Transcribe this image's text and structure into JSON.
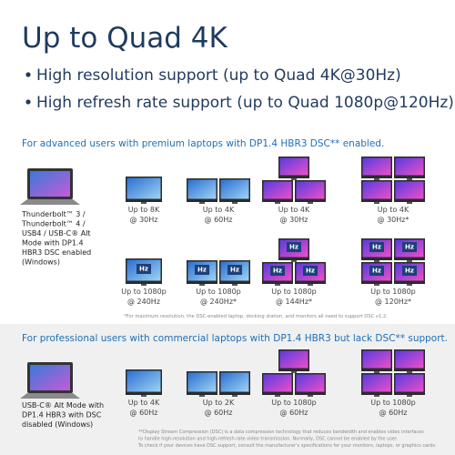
{
  "title": "Up to Quad 4K",
  "bullets": [
    "High resolution support (up to Quad 4K@30Hz)",
    "High refresh rate support (up to Quad 1080p@120Hz)"
  ],
  "sections": [
    {
      "heading": "For advanced users with premium laptops with DP1.4 HBR3 DSC** enabled.",
      "device": [
        "Thunderbolt™ 3 /",
        "Thunderbolt™ 4 /",
        "USB4 / USB-C® Alt",
        "Mode with DP1.4",
        "HBR3 DSC enabled",
        "(Windows)"
      ],
      "rows": [
        {
          "groups": [
            {
              "label": [
                "Up to 8K",
                "@ 30Hz"
              ]
            },
            {
              "label": [
                "Up to 4K",
                "@ 60Hz"
              ]
            },
            {
              "label": [
                "Up to 4K",
                "@ 30Hz"
              ]
            },
            {
              "label": [
                "Up to 4K",
                "@ 30Hz*"
              ]
            }
          ]
        },
        {
          "badge": "Hz",
          "groups": [
            {
              "label": [
                "Up to 1080p",
                "@ 240Hz"
              ]
            },
            {
              "label": [
                "Up to 1080p",
                "@ 240Hz*"
              ]
            },
            {
              "label": [
                "Up to 1080p",
                "@ 144Hz*"
              ]
            },
            {
              "label": [
                "Up to 1080p",
                "@ 120Hz*"
              ]
            }
          ]
        }
      ],
      "note": [
        "*For maximum resolution, the DSC-enabled laptop, docking station, and monitors all need to support DSC v1.2."
      ]
    },
    {
      "heading": "For professional users with commercial laptops with DP1.4 HBR3 but lack DSC** support.",
      "device": [
        "USB-C® Alt Mode with",
        "DP1.4 HBR3 with DSC",
        "disabled (Windows)"
      ],
      "rows": [
        {
          "groups": [
            {
              "label": [
                "Up to 4K",
                "@ 60Hz"
              ]
            },
            {
              "label": [
                "Up to 2K",
                "@ 60Hz"
              ]
            },
            {
              "label": [
                "Up to 1080p",
                "@ 60Hz"
              ]
            },
            {
              "label": [
                "Up to 1080p",
                "@ 60Hz"
              ]
            }
          ]
        }
      ],
      "note": [
        "**Display Stream Compression (DSC) is a data compression technology that reduces bandwidth and enables video interfaces",
        "to handle high-resolution and high-refresh-rate video transmission. Normally, DSC cannot be enabled by the user.",
        "To check if your devices have DSC support, consult the manufacturer's specifications for your monitors, laptops, or graphics cards."
      ]
    }
  ]
}
